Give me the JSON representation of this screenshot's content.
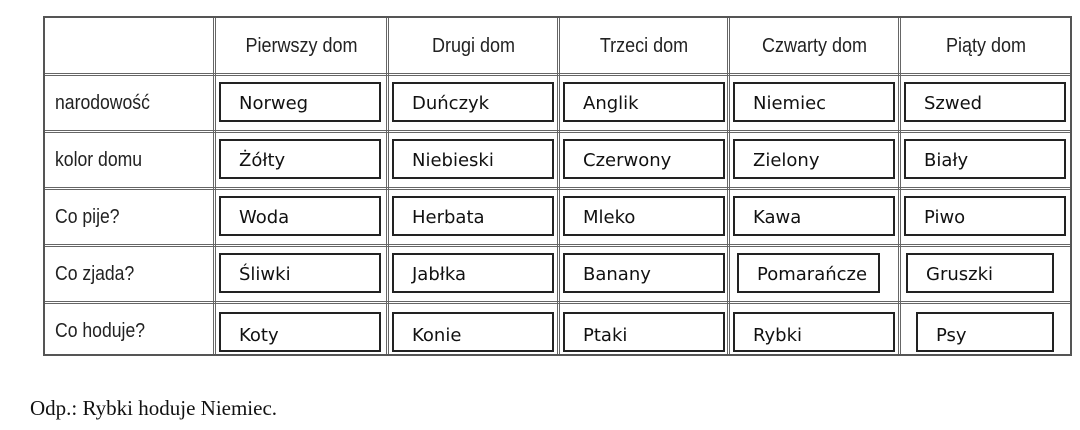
{
  "table": {
    "headers": [
      "Pierwszy dom",
      "Drugi dom",
      "Trzeci dom",
      "Czwarty dom",
      "Piąty dom"
    ],
    "rows": [
      {
        "label": "narodowość",
        "values": [
          "Norweg",
          "Duńczyk",
          "Anglik",
          "Niemiec",
          "Szwed"
        ]
      },
      {
        "label": "kolor domu",
        "values": [
          "Żółty",
          "Niebieski",
          "Czerwony",
          "Zielony",
          "Biały"
        ]
      },
      {
        "label": "Co pije?",
        "values": [
          "Woda",
          "Herbata",
          "Mleko",
          "Kawa",
          "Piwo"
        ]
      },
      {
        "label": "Co zjada?",
        "values": [
          "Śliwki",
          "Jabłka",
          "Banany",
          "Pomarańcze",
          "Gruszki"
        ]
      },
      {
        "label": "Co hoduje?",
        "values": [
          "Koty",
          "Konie",
          "Ptaki",
          "Rybki",
          "Psy"
        ]
      }
    ]
  },
  "answer": "Odp.: Rybki hoduje Niemiec."
}
